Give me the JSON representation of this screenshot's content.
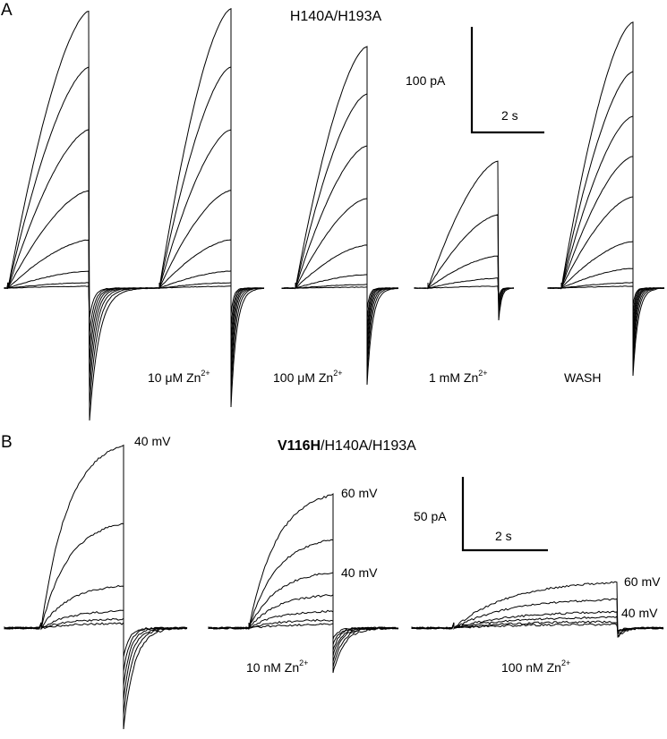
{
  "panel_a": {
    "letter": "A",
    "title": "H140A/H193A",
    "scale_current": "100 pA",
    "scale_time": "2 s",
    "conditions": [
      {
        "text": "10 μM Zn",
        "sup": "2+"
      },
      {
        "text": "100 μM Zn",
        "sup": "2+"
      },
      {
        "text": "1 mM Zn",
        "sup": "2+"
      },
      {
        "text": "WASH"
      }
    ]
  },
  "panel_b": {
    "letter": "B",
    "title_bold": "V116H",
    "title_rest": "/H140A/H193A",
    "scale_current": "50 pA",
    "scale_time": "2 s",
    "conditions": [
      {
        "text": "10 nM Zn",
        "sup": "2+"
      },
      {
        "text": "100 nM Zn",
        "sup": "2+"
      }
    ],
    "voltage_labels": [
      "40 mV",
      "60 mV",
      "40 mV",
      "60 mV",
      "40 mV"
    ]
  }
}
